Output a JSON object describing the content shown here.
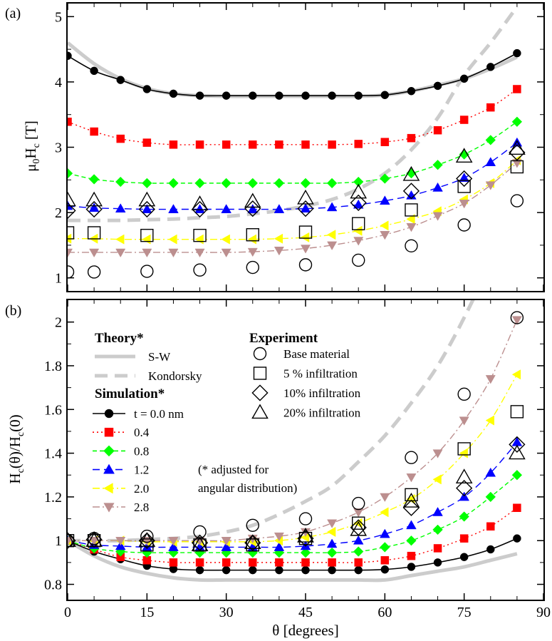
{
  "chart_data": [
    {
      "type": "line",
      "panel_label": "(a)",
      "ylabel": "μ0Hc [T]",
      "ylabel_main": "μ",
      "ylabel_sub0": "0",
      "ylabel_mid": "H",
      "ylabel_sub1": "c",
      "ylabel_tail": " [T]",
      "xlim": [
        0,
        90
      ],
      "ylim": [
        0.8,
        5.2
      ],
      "y_ticks": [
        1,
        2,
        3,
        4,
        5
      ],
      "y_tick_labels": [
        "1",
        "2",
        "3",
        "4",
        "5"
      ],
      "theory": [
        {
          "name": "S-W",
          "x": [
            0,
            5,
            10,
            15,
            20,
            25,
            30,
            35,
            40,
            45,
            50,
            55,
            60,
            65,
            70,
            75,
            80,
            85
          ],
          "y": [
            4.6,
            4.28,
            4.05,
            3.9,
            3.82,
            3.79,
            3.78,
            3.78,
            3.78,
            3.78,
            3.78,
            3.78,
            3.8,
            3.86,
            3.95,
            4.05,
            4.2,
            4.38
          ]
        },
        {
          "name": "Kondorsky",
          "x": [
            0,
            5,
            10,
            15,
            20,
            25,
            30,
            35,
            40,
            45,
            50,
            55,
            60,
            65,
            70,
            75,
            80,
            85
          ],
          "y": [
            1.88,
            1.88,
            1.88,
            1.89,
            1.9,
            1.92,
            1.94,
            1.98,
            2.03,
            2.1,
            2.2,
            2.36,
            2.6,
            2.96,
            3.45,
            4.1,
            4.6,
            5.15
          ]
        }
      ],
      "simulation": [
        {
          "name": "t = 0.0 nm",
          "x": [
            0,
            5,
            10,
            15,
            20,
            25,
            30,
            35,
            40,
            45,
            50,
            55,
            60,
            65,
            70,
            75,
            80,
            85
          ],
          "y": [
            4.4,
            4.17,
            4.03,
            3.89,
            3.82,
            3.79,
            3.79,
            3.79,
            3.79,
            3.79,
            3.79,
            3.79,
            3.8,
            3.86,
            3.94,
            4.05,
            4.23,
            4.44
          ]
        },
        {
          "name": "0.4",
          "x": [
            0,
            5,
            10,
            15,
            20,
            25,
            30,
            35,
            40,
            45,
            50,
            55,
            60,
            65,
            70,
            75,
            80,
            85
          ],
          "y": [
            3.39,
            3.24,
            3.13,
            3.07,
            3.04,
            3.04,
            3.04,
            3.04,
            3.04,
            3.04,
            3.04,
            3.05,
            3.08,
            3.14,
            3.26,
            3.42,
            3.61,
            3.89
          ]
        },
        {
          "name": "0.8",
          "x": [
            0,
            5,
            10,
            15,
            20,
            25,
            30,
            35,
            40,
            45,
            50,
            55,
            60,
            65,
            70,
            75,
            80,
            85
          ],
          "y": [
            2.6,
            2.51,
            2.47,
            2.45,
            2.45,
            2.45,
            2.45,
            2.45,
            2.45,
            2.45,
            2.45,
            2.47,
            2.52,
            2.6,
            2.73,
            2.89,
            3.11,
            3.39
          ]
        },
        {
          "name": "1.2",
          "x": [
            0,
            5,
            10,
            15,
            20,
            25,
            30,
            35,
            40,
            45,
            50,
            55,
            60,
            65,
            70,
            75,
            80,
            85
          ],
          "y": [
            2.1,
            2.07,
            2.06,
            2.05,
            2.05,
            2.05,
            2.05,
            2.05,
            2.05,
            2.06,
            2.08,
            2.12,
            2.18,
            2.26,
            2.38,
            2.53,
            2.77,
            3.07
          ]
        },
        {
          "name": "2.0",
          "x": [
            0,
            5,
            10,
            15,
            20,
            25,
            30,
            35,
            40,
            45,
            50,
            55,
            60,
            65,
            70,
            75,
            80,
            85
          ],
          "y": [
            1.6,
            1.6,
            1.59,
            1.59,
            1.59,
            1.59,
            1.59,
            1.59,
            1.6,
            1.62,
            1.66,
            1.72,
            1.8,
            1.9,
            2.02,
            2.2,
            2.45,
            2.8
          ]
        },
        {
          "name": "2.8",
          "x": [
            0,
            5,
            10,
            15,
            20,
            25,
            30,
            35,
            40,
            45,
            50,
            55,
            60,
            65,
            70,
            75,
            80,
            85
          ],
          "y": [
            1.39,
            1.39,
            1.39,
            1.39,
            1.39,
            1.39,
            1.39,
            1.4,
            1.42,
            1.45,
            1.5,
            1.57,
            1.66,
            1.78,
            1.95,
            2.14,
            2.42,
            2.76
          ]
        }
      ],
      "experiment": [
        {
          "name": "Base material",
          "x": [
            0,
            5,
            15,
            25,
            35,
            45,
            55,
            65,
            75,
            85
          ],
          "y": [
            1.09,
            1.09,
            1.1,
            1.12,
            1.16,
            1.2,
            1.27,
            1.49,
            1.81,
            2.18
          ]
        },
        {
          "name": "5 % infiltration",
          "x": [
            0,
            5,
            15,
            25,
            35,
            45,
            55,
            65,
            75,
            85
          ],
          "y": [
            1.69,
            1.69,
            1.65,
            1.65,
            1.66,
            1.7,
            1.83,
            2.04,
            2.4,
            2.7
          ]
        },
        {
          "name": "10% infiltration",
          "x": [
            0,
            5,
            15,
            25,
            35,
            45,
            55,
            65,
            75,
            85
          ],
          "y": [
            2.03,
            2.05,
            2.05,
            2.05,
            2.06,
            2.06,
            2.15,
            2.33,
            2.52,
            2.92
          ]
        },
        {
          "name": "20% infiltration",
          "x": [
            0,
            5,
            15,
            25,
            35,
            45,
            55,
            65,
            75,
            85
          ],
          "y": [
            2.19,
            2.19,
            2.19,
            2.13,
            2.17,
            2.22,
            2.31,
            2.58,
            2.86,
            2.98
          ]
        }
      ]
    },
    {
      "type": "line",
      "panel_label": "(b)",
      "ylabel": "Hc(θ)/Hc(0)",
      "xlabel": "θ [degrees]",
      "xlim": [
        0,
        90
      ],
      "ylim": [
        0.73,
        2.1
      ],
      "x_ticks": [
        0,
        15,
        30,
        45,
        60,
        75,
        90
      ],
      "x_tick_labels": [
        "0",
        "15",
        "30",
        "45",
        "60",
        "75",
        "90"
      ],
      "y_ticks": [
        0.8,
        1.0,
        1.2,
        1.4,
        1.6,
        1.8,
        2.0
      ],
      "y_tick_labels": [
        "0.8",
        "1",
        "1.2",
        "1.4",
        "1.6",
        "1.8",
        "2"
      ],
      "theory": [
        {
          "name": "S-W",
          "x": [
            0,
            5,
            10,
            15,
            20,
            25,
            30,
            35,
            40,
            45,
            50,
            55,
            60,
            65,
            70,
            75,
            80,
            85
          ],
          "y": [
            1.0,
            0.93,
            0.88,
            0.85,
            0.83,
            0.82,
            0.82,
            0.82,
            0.82,
            0.82,
            0.82,
            0.82,
            0.82,
            0.84,
            0.86,
            0.88,
            0.91,
            0.94
          ]
        },
        {
          "name": "Kondorsky",
          "x": [
            0,
            5,
            10,
            15,
            20,
            25,
            30,
            35,
            40,
            45,
            50,
            55,
            60,
            65,
            70,
            75,
            80,
            85
          ],
          "y": [
            1.0,
            1.0,
            1.0,
            1.005,
            1.01,
            1.02,
            1.04,
            1.07,
            1.12,
            1.18,
            1.25,
            1.36,
            1.48,
            1.63,
            1.8,
            2.02,
            2.28,
            2.6
          ]
        }
      ],
      "simulation": [
        {
          "name": "t = 0.0 nm",
          "x": [
            0,
            5,
            10,
            15,
            20,
            25,
            30,
            35,
            40,
            45,
            50,
            55,
            60,
            65,
            70,
            75,
            80,
            85
          ],
          "y": [
            1.0,
            0.95,
            0.915,
            0.885,
            0.87,
            0.865,
            0.865,
            0.865,
            0.865,
            0.865,
            0.865,
            0.865,
            0.868,
            0.88,
            0.9,
            0.925,
            0.96,
            1.01
          ]
        },
        {
          "name": "0.4",
          "x": [
            0,
            5,
            10,
            15,
            20,
            25,
            30,
            35,
            40,
            45,
            50,
            55,
            60,
            65,
            70,
            75,
            80,
            85
          ],
          "y": [
            1.0,
            0.96,
            0.925,
            0.91,
            0.9,
            0.9,
            0.9,
            0.9,
            0.9,
            0.9,
            0.9,
            0.9,
            0.91,
            0.93,
            0.965,
            1.01,
            1.065,
            1.15
          ]
        },
        {
          "name": "0.8",
          "x": [
            0,
            5,
            10,
            15,
            20,
            25,
            30,
            35,
            40,
            45,
            50,
            55,
            60,
            65,
            70,
            75,
            80,
            85
          ],
          "y": [
            1.0,
            0.965,
            0.95,
            0.945,
            0.945,
            0.945,
            0.945,
            0.945,
            0.945,
            0.945,
            0.945,
            0.95,
            0.97,
            1.0,
            1.05,
            1.11,
            1.2,
            1.3
          ]
        },
        {
          "name": "1.2",
          "x": [
            0,
            5,
            10,
            15,
            20,
            25,
            30,
            35,
            40,
            45,
            50,
            55,
            60,
            65,
            70,
            75,
            80,
            85
          ],
          "y": [
            1.0,
            0.98,
            0.975,
            0.97,
            0.97,
            0.97,
            0.97,
            0.97,
            0.97,
            0.975,
            0.985,
            1.0,
            1.03,
            1.07,
            1.13,
            1.2,
            1.31,
            1.45
          ]
        },
        {
          "name": "2.0",
          "x": [
            0,
            5,
            10,
            15,
            20,
            25,
            30,
            35,
            40,
            45,
            50,
            55,
            60,
            65,
            70,
            75,
            80,
            85
          ],
          "y": [
            1.0,
            1.0,
            1.0,
            0.995,
            0.995,
            0.995,
            0.995,
            0.995,
            1.0,
            1.015,
            1.04,
            1.08,
            1.13,
            1.19,
            1.28,
            1.4,
            1.55,
            1.76
          ]
        },
        {
          "name": "2.8",
          "x": [
            0,
            5,
            10,
            15,
            20,
            25,
            30,
            35,
            40,
            45,
            50,
            55,
            60,
            65,
            70,
            75,
            80,
            85
          ],
          "y": [
            1.0,
            1.0,
            1.0,
            1.0,
            1.0,
            1.0,
            1.0,
            1.01,
            1.02,
            1.04,
            1.08,
            1.13,
            1.2,
            1.29,
            1.4,
            1.55,
            1.74,
            2.01
          ]
        }
      ],
      "experiment": [
        {
          "name": "Base material",
          "x": [
            0,
            5,
            15,
            25,
            35,
            45,
            55,
            65,
            75,
            85
          ],
          "y": [
            1.0,
            1.01,
            1.02,
            1.04,
            1.07,
            1.1,
            1.17,
            1.38,
            1.67,
            2.02
          ]
        },
        {
          "name": "5 % infiltration",
          "x": [
            0,
            5,
            15,
            25,
            35,
            45,
            55,
            65,
            75,
            85
          ],
          "y": [
            1.0,
            1.0,
            0.98,
            0.98,
            0.98,
            1.01,
            1.08,
            1.21,
            1.42,
            1.59
          ]
        },
        {
          "name": "10% infiltration",
          "x": [
            0,
            5,
            15,
            25,
            35,
            45,
            55,
            65,
            75,
            85
          ],
          "y": [
            1.0,
            1.005,
            1.0,
            0.99,
            0.99,
            1.01,
            1.06,
            1.15,
            1.24,
            1.44
          ]
        },
        {
          "name": "20% infiltration",
          "x": [
            0,
            5,
            15,
            25,
            35,
            45,
            55,
            65,
            75,
            85
          ],
          "y": [
            1.0,
            1.0,
            1.0,
            0.98,
            0.99,
            1.02,
            1.05,
            1.18,
            1.29,
            1.4
          ]
        }
      ]
    }
  ],
  "legend": {
    "theory_title": "Theory*",
    "theory_items": [
      "S-W",
      "Kondorsky"
    ],
    "simulation_title": "Simulation*",
    "simulation_items": [
      "t = 0.0 nm",
      "0.4",
      "0.8",
      "1.2",
      "2.0",
      "2.8"
    ],
    "experiment_title": "Experiment",
    "experiment_items": [
      "Base material",
      "5 % infiltration",
      "10% infiltration",
      "20% infiltration"
    ],
    "note_line1": "(* adjusted for",
    "note_line2": "angular distribution)"
  },
  "colors": {
    "sim": [
      "#000000",
      "#ff0000",
      "#00ff00",
      "#0000ff",
      "#ffff00",
      "#bc8f8f"
    ],
    "theory": "#cccccc",
    "axis": "#000000"
  },
  "sim_markers": [
    "circle",
    "square",
    "diamond",
    "triangle-up",
    "triangle-left",
    "triangle-down"
  ],
  "sim_dash": [
    "",
    "2,4",
    "6,4",
    "10,6",
    "10,4,2,4",
    "10,4,2,4"
  ],
  "exp_markers": [
    "circle",
    "square",
    "diamond",
    "triangle-up"
  ]
}
